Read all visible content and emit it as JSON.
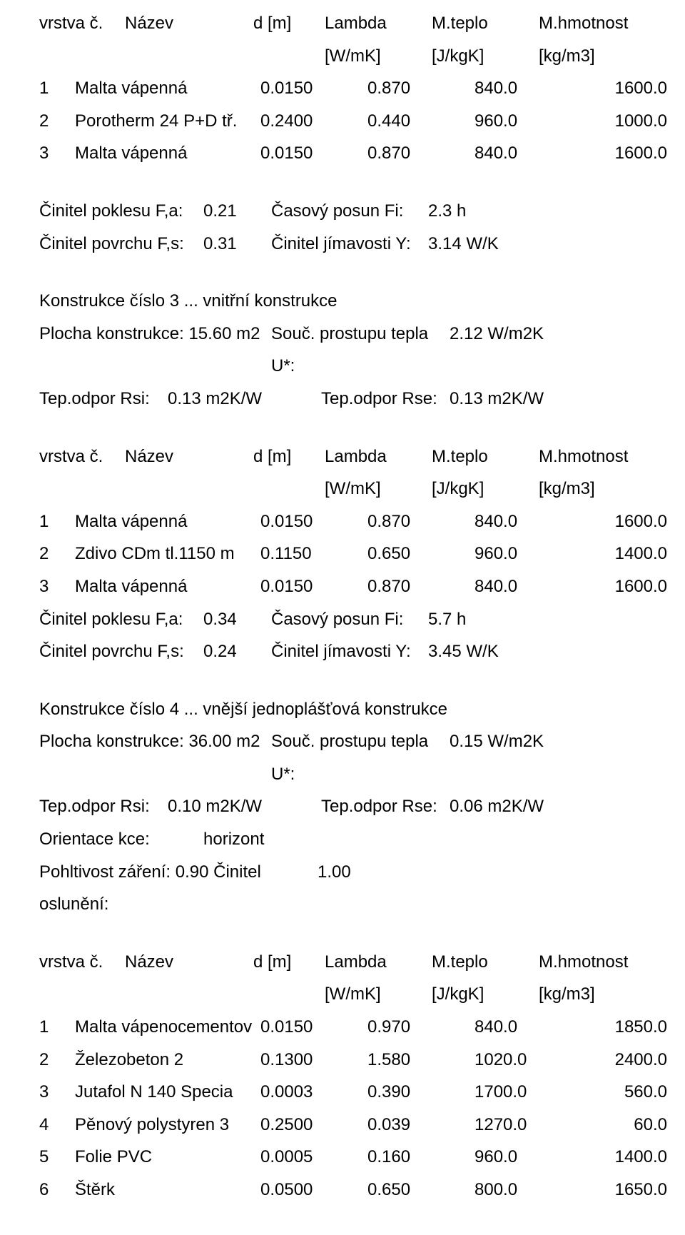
{
  "hdr": {
    "vrstva": "vrstva č.",
    "nazev": "Název",
    "dm": "d [m]",
    "lambda": "Lambda",
    "mteplo": "M.teplo",
    "mhmot": "M.hmotnost",
    "u1": "[W/mK]",
    "u2": "[J/kgK]",
    "u3": "[kg/m3]"
  },
  "block1": {
    "rows": [
      {
        "i": "1",
        "n": "Malta vápenná",
        "a": "0.0150",
        "b": "0.870",
        "c": "840.0",
        "d": "1600.0"
      },
      {
        "i": "2",
        "n": "Porotherm 24 P+D tř.",
        "a": "0.2400",
        "b": "0.440",
        "c": "960.0",
        "d": "1000.0"
      },
      {
        "i": "3",
        "n": "Malta vápenná",
        "a": "0.0150",
        "b": "0.870",
        "c": "840.0",
        "d": "1600.0"
      }
    ],
    "cin1": {
      "k1": "Činitel poklesu F,a:",
      "v1": "0.21",
      "k2": "Časový posun Fi:",
      "v2": "2.3 h"
    },
    "cin2": {
      "k1": "Činitel povrchu F,s:",
      "v1": "0.31",
      "k2": "Činitel jímavosti Y:",
      "v2": "3.14 W/K"
    }
  },
  "kon3": {
    "title": "Konstrukce číslo   3   ... vnitřní konstrukce",
    "plocha": {
      "a": "Plocha konstrukce:  15.60 m2",
      "b": "Souč. prostupu tepla U*:",
      "c": "2.12 W/m2K"
    },
    "tep": {
      "a": "Tep.odpor Rsi:",
      "b": "0.13 m2K/W",
      "c": "Tep.odpor Rse:",
      "d": "0.13 m2K/W"
    }
  },
  "block2": {
    "rows": [
      {
        "i": "1",
        "n": "Malta vápenná",
        "a": "0.0150",
        "b": "0.870",
        "c": "840.0",
        "d": "1600.0"
      },
      {
        "i": "2",
        "n": "Zdivo CDm tl.1150 m",
        "a": "0.1150",
        "b": "0.650",
        "c": "960.0",
        "d": "1400.0"
      },
      {
        "i": "3",
        "n": "Malta vápenná",
        "a": "0.0150",
        "b": "0.870",
        "c": "840.0",
        "d": "1600.0"
      }
    ],
    "cin1": {
      "k1": "Činitel poklesu F,a:",
      "v1": "0.34",
      "k2": "Časový posun Fi:",
      "v2": "5.7 h"
    },
    "cin2": {
      "k1": "Činitel povrchu F,s:",
      "v1": "0.24",
      "k2": "Činitel jímavosti Y:",
      "v2": "3.45 W/K"
    }
  },
  "kon4": {
    "title": "Konstrukce číslo   4   ... vnější jednoplášťová konstrukce",
    "plocha": {
      "a": "Plocha konstrukce:  36.00 m2",
      "b": "Souč. prostupu tepla U*:",
      "c": "0.15 W/m2K"
    },
    "tep": {
      "a": "Tep.odpor Rsi:",
      "b": "0.10 m2K/W",
      "c": "Tep.odpor Rse:",
      "d": "0.06 m2K/W"
    },
    "ori": {
      "a": "Orientace kce:",
      "b": "horizont"
    },
    "poh": {
      "a": "Pohltivost záření:     0.90  Činitel oslunění:",
      "b": "1.00"
    }
  },
  "block3": {
    "rows": [
      {
        "i": "1",
        "n": "Malta vápenocementov",
        "a": "0.0150",
        "b": "0.970",
        "c": "840.0",
        "d": "1850.0"
      },
      {
        "i": "2",
        "n": "Železobeton 2",
        "a": "0.1300",
        "b": "1.580",
        "c": "1020.0",
        "d": "2400.0"
      },
      {
        "i": "3",
        "n": "Jutafol N 140 Specia",
        "a": "0.0003",
        "b": "0.390",
        "c": "1700.0",
        "d": "560.0"
      },
      {
        "i": "4",
        "n": "Pěnový polystyren 3",
        "a": "0.2500",
        "b": "0.039",
        "c": "1270.0",
        "d": "60.0"
      },
      {
        "i": "5",
        "n": "Folie PVC",
        "a": "0.0005",
        "b": "0.160",
        "c": "960.0",
        "d": "1400.0"
      },
      {
        "i": "6",
        "n": "Štěrk",
        "a": "0.0500",
        "b": "0.650",
        "c": "800.0",
        "d": "1650.0"
      }
    ]
  }
}
